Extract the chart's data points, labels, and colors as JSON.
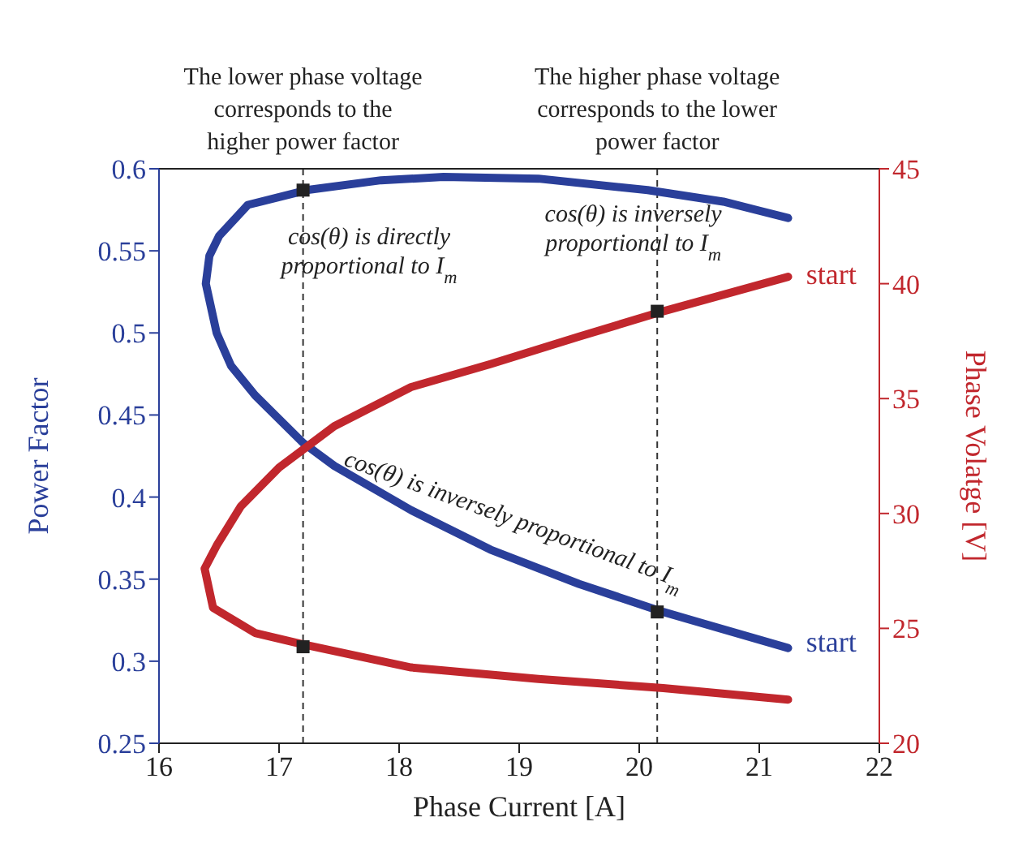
{
  "chart_data": {
    "type": "line",
    "xlabel": "Phase Current [A]",
    "ylabel": "Power Factor",
    "y2label": "Phase Volatge [V]",
    "xlim": [
      16,
      22
    ],
    "xticks": [
      16,
      17,
      18,
      19,
      20,
      21,
      22
    ],
    "ylim": [
      0.25,
      0.6
    ],
    "yticks": [
      0.25,
      0.3,
      0.35,
      0.4,
      0.45,
      0.5,
      0.55,
      0.6
    ],
    "y2lim": [
      20,
      45
    ],
    "y2ticks": [
      20,
      25,
      30,
      35,
      40,
      45
    ],
    "line_style": "solid",
    "series": [
      {
        "color": "#2a3f9a",
        "axis": "y",
        "x": [
          21.24,
          20.2,
          19.5,
          18.76,
          18.1,
          17.46,
          17.2,
          16.8,
          16.6,
          16.48,
          16.39,
          16.42,
          16.5,
          16.74,
          17.23,
          17.85,
          18.37,
          19.16,
          20.07,
          20.7,
          21.24
        ],
        "values": [
          0.308,
          0.33,
          0.347,
          0.368,
          0.392,
          0.419,
          0.433,
          0.462,
          0.48,
          0.5,
          0.53,
          0.547,
          0.559,
          0.578,
          0.587,
          0.593,
          0.595,
          0.594,
          0.587,
          0.58,
          0.57
        ]
      },
      {
        "color": "#c1272d",
        "axis": "y2",
        "x": [
          21.24,
          20.2,
          19.5,
          18.76,
          18.1,
          17.46,
          17.0,
          16.68,
          16.48,
          16.38,
          16.45,
          16.8,
          17.2,
          18.1,
          19.16,
          20.2,
          21.24
        ],
        "values": [
          40.3,
          38.8,
          37.7,
          36.5,
          35.5,
          33.8,
          32,
          30.3,
          28.6,
          27.6,
          25.9,
          24.8,
          24.3,
          23.3,
          22.8,
          22.4,
          21.9
        ]
      },
      {
        "type": "scatter",
        "marker": "square",
        "color": "#222222",
        "axis": "y",
        "x": [
          17.2,
          20.15
        ],
        "values": [
          0.587,
          0.33
        ]
      },
      {
        "type": "scatter",
        "marker": "square",
        "color": "#222222",
        "axis": "y2",
        "x": [
          17.2,
          20.15
        ],
        "values": [
          24.2,
          38.8
        ]
      }
    ],
    "ref_lines": [
      {
        "axis": "x",
        "value": 17.2,
        "label": "The lower phase voltage corresponds to the higher power factor",
        "line_style": "dashed",
        "color": "#333333"
      },
      {
        "axis": "x",
        "value": 20.15,
        "label": "The higher phase voltage corresponds to the lower power factor",
        "line_style": "dashed",
        "color": "#333333"
      }
    ],
    "annotations": [
      "cos(θ) is directly proportional to I$_{m}$",
      "cos(θ) is inversely proportional to I$_{m}$",
      "cos(θ) is inversely proportional to I$_{m}$",
      "start",
      "start"
    ]
  }
}
